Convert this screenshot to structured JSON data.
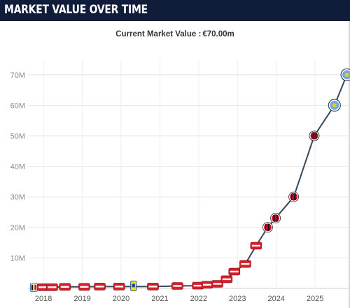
{
  "header": {
    "title": "MARKET VALUE OVER TIME"
  },
  "summary": {
    "label": "Current Market Value :",
    "value": "€70.00m"
  },
  "colors": {
    "header_bg": "#0f1d3a",
    "line": "#34495e",
    "az_red": "#d5202c",
    "milan_red": "#c8102e",
    "city_blue": "#6cabdd",
    "union_yellow": "#f2e600"
  },
  "chart_data": {
    "type": "line",
    "title": "",
    "xlabel": "",
    "ylabel": "",
    "x_ticks": [
      "2018",
      "2019",
      "2020",
      "2021",
      "2022",
      "2023",
      "2024",
      "2025"
    ],
    "y_ticks": [
      "10M",
      "20M",
      "30M",
      "40M",
      "50M",
      "60M",
      "70M"
    ],
    "ylim": [
      0,
      75
    ],
    "xlim": [
      2017.6,
      2025.9
    ],
    "grid": true,
    "series": [
      {
        "values_unit": "€M",
        "points": [
          {
            "x": 2017.75,
            "y": 0.3,
            "club": "Belgium youth",
            "icon": "flag-badge-icon"
          },
          {
            "x": 2017.98,
            "y": 0.4,
            "club": "AZ Alkmaar",
            "icon": "az-badge-icon"
          },
          {
            "x": 2018.22,
            "y": 0.4,
            "club": "AZ Alkmaar",
            "icon": "az-badge-icon"
          },
          {
            "x": 2018.55,
            "y": 0.5,
            "club": "AZ Alkmaar",
            "icon": "az-badge-icon"
          },
          {
            "x": 2019.05,
            "y": 0.5,
            "club": "AZ Alkmaar",
            "icon": "az-badge-icon"
          },
          {
            "x": 2019.45,
            "y": 0.6,
            "club": "AZ Alkmaar",
            "icon": "az-badge-icon"
          },
          {
            "x": 2019.95,
            "y": 0.6,
            "club": "AZ Alkmaar",
            "icon": "az-badge-icon"
          },
          {
            "x": 2020.32,
            "y": 0.6,
            "club": "Union SG",
            "icon": "union-badge-icon"
          },
          {
            "x": 2020.82,
            "y": 0.6,
            "club": "AZ Alkmaar",
            "icon": "az-badge-icon"
          },
          {
            "x": 2021.45,
            "y": 0.8,
            "club": "AZ Alkmaar",
            "icon": "az-badge-icon"
          },
          {
            "x": 2021.98,
            "y": 0.9,
            "club": "AZ Alkmaar",
            "icon": "az-badge-icon"
          },
          {
            "x": 2022.22,
            "y": 1.2,
            "club": "AZ Alkmaar",
            "icon": "az-badge-icon"
          },
          {
            "x": 2022.48,
            "y": 1.5,
            "club": "AZ Alkmaar",
            "icon": "az-badge-icon"
          },
          {
            "x": 2022.72,
            "y": 3.0,
            "club": "AZ Alkmaar",
            "icon": "az-badge-icon"
          },
          {
            "x": 2022.92,
            "y": 5.5,
            "club": "AZ Alkmaar",
            "icon": "az-badge-icon"
          },
          {
            "x": 2023.2,
            "y": 8.0,
            "club": "AZ Alkmaar",
            "icon": "az-badge-icon"
          },
          {
            "x": 2023.48,
            "y": 14.0,
            "club": "AZ Alkmaar",
            "icon": "az-badge-icon"
          },
          {
            "x": 2023.78,
            "y": 20.0,
            "club": "AC Milan",
            "icon": "milan-badge-icon"
          },
          {
            "x": 2023.98,
            "y": 23.0,
            "club": "AC Milan",
            "icon": "milan-badge-icon"
          },
          {
            "x": 2024.45,
            "y": 30.0,
            "club": "AC Milan",
            "icon": "milan-badge-icon"
          },
          {
            "x": 2024.98,
            "y": 50.0,
            "club": "AC Milan",
            "icon": "milan-badge-icon"
          },
          {
            "x": 2025.5,
            "y": 60.0,
            "club": "Manchester City",
            "icon": "city-badge-icon"
          },
          {
            "x": 2025.82,
            "y": 70.0,
            "club": "Manchester City",
            "icon": "city-badge-icon"
          }
        ]
      }
    ]
  }
}
